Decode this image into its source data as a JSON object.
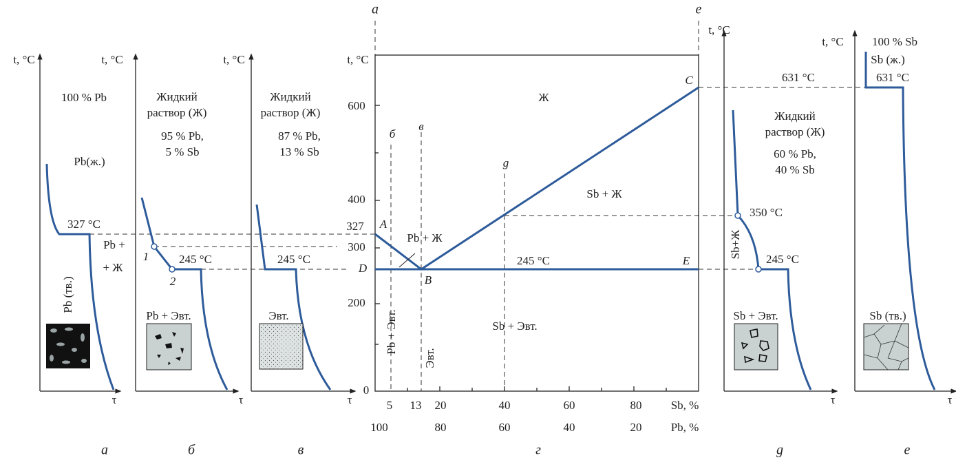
{
  "panel_a": {
    "axis": "t, °C",
    "time": "τ",
    "caption": "а",
    "texts": [
      "100 % Pb",
      "Pb(ж.)",
      "327 °C",
      "Pb (тв.)"
    ]
  },
  "panel_b": {
    "axis": "t, °C",
    "time": "τ",
    "caption": "б",
    "texts": [
      "Жидкий",
      "раствор (Ж)",
      "95 % Pb,",
      "5 % Sb",
      "1",
      "2",
      "245 °C",
      "Pb +",
      "+ Ж",
      "Pb + Эвт."
    ]
  },
  "panel_v": {
    "axis": "t, °C",
    "time": "τ",
    "caption": "в",
    "texts": [
      "Жидкий",
      "раствор (Ж)",
      "87 % Pb,",
      "13 % Sb",
      "245 °C",
      "Эвт."
    ]
  },
  "diagram": {
    "axis": "t, °C",
    "caption": "г",
    "lines": [
      "а",
      "е",
      "б",
      "в",
      "g"
    ],
    "points": [
      "A",
      "B",
      "C",
      "D",
      "E"
    ],
    "regions": [
      "Ж",
      "Sb + Ж",
      "Pb + Ж",
      "245 °C",
      "Sb + Эвт.",
      "Pb + Эвт.",
      "Эвт.",
      "631 °C"
    ],
    "yticks": [
      "0",
      "200",
      "300",
      "327",
      "400",
      "600"
    ],
    "sb_ticks": [
      "5",
      "13",
      "20",
      "40",
      "60",
      "80",
      "Sb, %"
    ],
    "pb_ticks": [
      "100",
      "80",
      "60",
      "40",
      "20",
      "Pb, %"
    ]
  },
  "panel_g": {
    "axis": "t, °C",
    "time": "τ",
    "caption": "g",
    "texts": [
      "Жидкий",
      "раствор (Ж)",
      "60 % Pb,",
      "40 % Sb",
      "350 °C",
      "245 °C",
      "Sb+Ж",
      "Sb + Эвт."
    ]
  },
  "panel_e": {
    "axis": "t, °C",
    "time": "τ",
    "caption": "е",
    "texts": [
      "100 % Sb",
      "Sb (ж.)",
      "631 °C",
      "Sb (тв.)"
    ]
  }
}
